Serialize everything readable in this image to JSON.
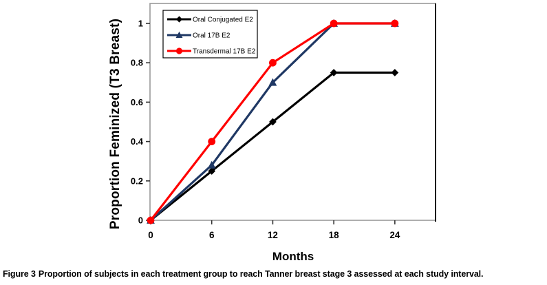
{
  "figure": {
    "caption": {
      "label": "Figure 3",
      "text": "Proportion of subjects in each treatment group to reach Tanner breast stage 3 assessed at each study interval."
    }
  },
  "chart_data": {
    "type": "line",
    "title": "",
    "xlabel": "Months",
    "ylabel": "Proportion Feminized (T3 Breast)",
    "x": [
      0,
      6,
      12,
      18,
      24
    ],
    "xticks": [
      {
        "value": 0,
        "label": "0"
      },
      {
        "value": 6,
        "label": "6"
      },
      {
        "value": 12,
        "label": "12"
      },
      {
        "value": 18,
        "label": "18"
      },
      {
        "value": 24,
        "label": "24"
      }
    ],
    "yticks": [
      {
        "value": 0,
        "label": "0"
      },
      {
        "value": 0.2,
        "label": "0.2"
      },
      {
        "value": 0.4,
        "label": "0.4"
      },
      {
        "value": 0.6,
        "label": "0.6"
      },
      {
        "value": 0.8,
        "label": "0.8"
      },
      {
        "value": 1,
        "label": "1"
      }
    ],
    "xlim": [
      0,
      28
    ],
    "ylim": [
      0,
      1.1
    ],
    "grid": false,
    "legend_position": "top-left-inside",
    "series": [
      {
        "name": "Oral Conjugated E2",
        "color": "#000000",
        "marker": "diamond",
        "values": [
          0,
          0.25,
          0.5,
          0.75,
          0.75
        ]
      },
      {
        "name": "Oral 17B E2",
        "color": "#1f3864",
        "marker": "triangle",
        "values": [
          0,
          0.28,
          0.7,
          1,
          1
        ]
      },
      {
        "name": "Transdermal 17B E2",
        "color": "#ff0000",
        "marker": "circle",
        "values": [
          0,
          0.4,
          0.8,
          1,
          1
        ]
      }
    ],
    "colors": {
      "frame_border": "#9a9a9a",
      "frame_right_border": "#1a1a1a",
      "tick": "#333333",
      "text": "#000000",
      "legend_border": "#000000",
      "legend_fill": "#ffffff"
    }
  }
}
